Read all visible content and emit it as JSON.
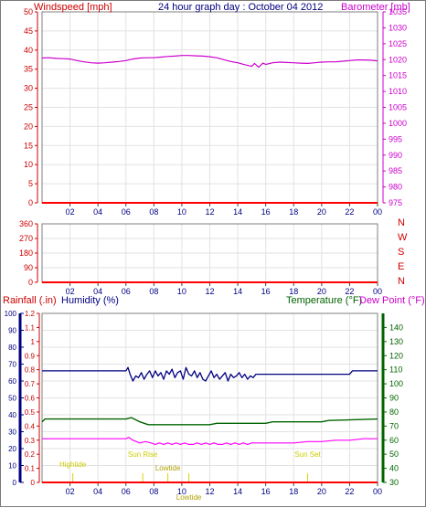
{
  "chart_data": [
    {
      "panel": "top",
      "type": "line",
      "title": "24 hour graph day : October 04 2012",
      "left_axis_label": "Windspeed [mph]",
      "right_axis_label": "Barometer [mb]",
      "x_ticks": [
        "02",
        "04",
        "06",
        "08",
        "10",
        "12",
        "14",
        "16",
        "18",
        "20",
        "22",
        "00"
      ],
      "left_ticks": [
        0,
        5,
        10,
        15,
        20,
        25,
        30,
        35,
        40,
        45,
        50
      ],
      "left_ylim": [
        0,
        50
      ],
      "right_ticks": [
        975,
        980,
        985,
        990,
        995,
        1000,
        1005,
        1010,
        1015,
        1020,
        1025,
        1030,
        1035
      ],
      "right_ylim": [
        975,
        1035
      ],
      "xlim": [
        0,
        24
      ],
      "series": [
        {
          "name": "Windspeed [mph]",
          "axis": "left",
          "color": "#ff0000",
          "x": [
            0,
            24
          ],
          "y": [
            0,
            0
          ]
        },
        {
          "name": "Barometer [mb]",
          "axis": "right",
          "color": "#cc00cc",
          "x": [
            0,
            0.5,
            1,
            1.5,
            2,
            2.5,
            3,
            3.5,
            4,
            4.5,
            5,
            5.5,
            6,
            6.5,
            7,
            7.5,
            8,
            8.5,
            9,
            9.5,
            10,
            10.5,
            11,
            11.5,
            12,
            12.5,
            13,
            13.5,
            14,
            14.5,
            15,
            15.2,
            15.5,
            15.8,
            16,
            16.5,
            17,
            17.5,
            18,
            18.5,
            19,
            19.5,
            20,
            20.5,
            21,
            21.5,
            22,
            22.5,
            23,
            23.5,
            24
          ],
          "y": [
            1020.5,
            1020.6,
            1020.4,
            1020.3,
            1020.2,
            1019.7,
            1019.3,
            1019.0,
            1018.9,
            1019.0,
            1019.2,
            1019.4,
            1019.7,
            1020.2,
            1020.5,
            1020.6,
            1020.6,
            1020.8,
            1021.0,
            1021.1,
            1021.3,
            1021.3,
            1021.2,
            1021.1,
            1020.9,
            1020.6,
            1020.0,
            1019.4,
            1019.0,
            1018.4,
            1017.9,
            1018.8,
            1017.6,
            1018.9,
            1018.5,
            1019.0,
            1019.2,
            1019.1,
            1019.0,
            1018.9,
            1018.8,
            1019.0,
            1019.2,
            1019.3,
            1019.3,
            1019.5,
            1019.7,
            1019.9,
            1019.9,
            1019.8,
            1019.6
          ]
        }
      ]
    },
    {
      "panel": "middle",
      "type": "line",
      "x_ticks": [
        "02",
        "04",
        "06",
        "08",
        "10",
        "12",
        "14",
        "16",
        "18",
        "20",
        "22",
        "00"
      ],
      "left_ticks": [
        0,
        90,
        180,
        270,
        360
      ],
      "left_ylim": [
        0,
        360
      ],
      "right_labels": [
        "N",
        "W",
        "S",
        "E",
        "N"
      ],
      "xlim": [
        0,
        24
      ],
      "series": [
        {
          "name": "Wind direction",
          "axis": "left",
          "color": "#ff0000",
          "x": [
            0,
            24
          ],
          "y": [
            0,
            0
          ]
        }
      ]
    },
    {
      "panel": "bottom",
      "type": "line",
      "left_axis_label": "Rainfall (.in)",
      "left_axis_label_2": "Humidity (%)",
      "right_axis_label": "Temperature (°F)",
      "right_axis_label_2": "Dew Point (°F)",
      "x_ticks": [
        "02",
        "04",
        "06",
        "08",
        "10",
        "12",
        "14",
        "16",
        "18",
        "20",
        "22",
        "00"
      ],
      "humidity_ticks": [
        0,
        10,
        20,
        30,
        40,
        50,
        60,
        70,
        80,
        90,
        100
      ],
      "humidity_ylim": [
        0,
        100
      ],
      "rain_ticks": [
        "0",
        "0.1",
        "0.2",
        "0.3",
        "0.4",
        "0.5",
        "0.6",
        "0.7",
        "0.8",
        "0.9",
        "1",
        "1.1",
        "1.2"
      ],
      "rain_ylim": [
        0,
        1.2
      ],
      "temp_ticks": [
        30,
        40,
        50,
        60,
        70,
        80,
        90,
        100,
        110,
        120,
        130,
        140
      ],
      "temp_ylim": [
        30,
        150
      ],
      "xlim": [
        0,
        24
      ],
      "annotations": [
        {
          "label": "Hightide",
          "x": 2.2
        },
        {
          "label": "Sun Rise",
          "x": 7.2
        },
        {
          "label": "Lowtide",
          "x": 9.0
        },
        {
          "label": "Lowtide",
          "x": 10.5
        },
        {
          "label": "Sun Set",
          "x": 19.0
        }
      ],
      "series": [
        {
          "name": "Humidity (%)",
          "axis": "humidity",
          "color": "#000080",
          "x": [
            0,
            6,
            6.15,
            6.3,
            6.5,
            6.7,
            6.9,
            7.1,
            7.3,
            7.5,
            7.7,
            7.9,
            8.1,
            8.3,
            8.5,
            8.7,
            8.9,
            9.1,
            9.3,
            9.5,
            9.7,
            9.9,
            10.1,
            10.3,
            10.5,
            10.7,
            10.9,
            11.1,
            11.3,
            11.5,
            11.7,
            11.9,
            12.1,
            12.3,
            12.5,
            12.7,
            12.9,
            13.1,
            13.3,
            13.5,
            13.7,
            13.9,
            14.1,
            14.3,
            14.5,
            14.7,
            14.9,
            15.1,
            15.3,
            16,
            22,
            22.2,
            24
          ],
          "y": [
            66,
            66,
            68,
            64,
            60,
            63,
            62,
            65,
            61,
            64,
            66,
            62,
            66,
            63,
            65,
            61,
            66,
            64,
            67,
            62,
            65,
            66,
            61,
            68,
            64,
            63,
            66,
            62,
            65,
            61,
            60,
            63,
            66,
            62,
            64,
            61,
            63,
            65,
            60,
            64,
            62,
            63,
            65,
            62,
            64,
            61,
            63,
            62,
            64,
            64,
            64,
            66,
            66
          ]
        },
        {
          "name": "Temperature (°F)",
          "axis": "temp",
          "color": "#006400",
          "x": [
            0,
            0.2,
            6,
            6.4,
            7,
            7.6,
            8,
            12,
            12.5,
            16,
            16.5,
            20,
            20.5,
            24
          ],
          "y": [
            73,
            75,
            75,
            76,
            73,
            71,
            71,
            71,
            72,
            72,
            73,
            73,
            74,
            75
          ]
        },
        {
          "name": "Dew Point (°F)",
          "axis": "temp",
          "color": "#ff00ff",
          "x": [
            0,
            6,
            6.2,
            6.5,
            7.0,
            7.4,
            7.8,
            8.1,
            8.4,
            8.7,
            9.0,
            9.3,
            9.6,
            9.9,
            10.2,
            10.5,
            10.8,
            11.1,
            11.4,
            11.7,
            12.0,
            12.3,
            12.6,
            12.9,
            13.2,
            13.5,
            13.8,
            14.1,
            14.4,
            14.7,
            15,
            15.3,
            16,
            18,
            19,
            20,
            21,
            22,
            23,
            24
          ],
          "y": [
            61,
            61,
            62,
            60,
            58,
            59,
            58,
            57,
            58,
            57,
            58,
            57,
            58,
            57,
            58,
            57,
            57,
            58,
            57,
            58,
            57,
            58,
            57,
            57,
            58,
            57,
            58,
            57,
            58,
            57,
            58,
            58,
            58,
            58,
            59,
            59,
            60,
            60,
            61,
            61
          ]
        },
        {
          "name": "Rainfall (.in)",
          "axis": "rain",
          "color": "#ff0000",
          "x": [
            0,
            24
          ],
          "y": [
            0,
            0
          ]
        }
      ]
    }
  ],
  "right_compass": [
    "N",
    "W",
    "S",
    "E",
    "N"
  ]
}
